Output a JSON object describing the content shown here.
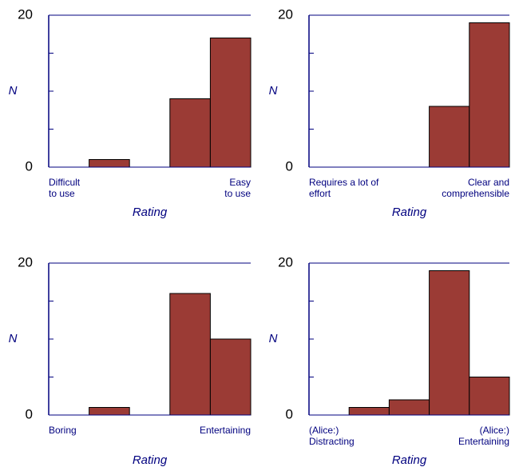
{
  "chart_data": [
    {
      "type": "bar",
      "values": [
        0,
        1,
        0,
        9,
        17
      ],
      "color": "#9b3b35",
      "ylim": [
        0,
        20
      ],
      "yticks": [
        0,
        20
      ],
      "minor_yticks": [
        5,
        10,
        15
      ],
      "ylabel": "N",
      "xlabel": "Rating",
      "low_label": [
        "Difficult",
        "to use"
      ],
      "high_label": [
        "Easy",
        "to use"
      ]
    },
    {
      "type": "bar",
      "values": [
        0,
        0,
        0,
        8,
        19
      ],
      "color": "#9b3b35",
      "ylim": [
        0,
        20
      ],
      "yticks": [
        0,
        20
      ],
      "minor_yticks": [
        5,
        10,
        15
      ],
      "ylabel": "N",
      "xlabel": "Rating",
      "low_label": [
        "Requires a lot of",
        "effort"
      ],
      "high_label": [
        "Clear and",
        "comprehensible"
      ]
    },
    {
      "type": "bar",
      "values": [
        0,
        1,
        0,
        16,
        10
      ],
      "color": "#9b3b35",
      "ylim": [
        0,
        20
      ],
      "yticks": [
        0,
        20
      ],
      "minor_yticks": [
        5,
        10,
        15
      ],
      "ylabel": "N",
      "xlabel": "Rating",
      "low_label": [
        "Boring"
      ],
      "high_label": [
        "Entertaining"
      ]
    },
    {
      "type": "bar",
      "values": [
        0,
        1,
        2,
        19,
        5
      ],
      "color": "#9b3b35",
      "ylim": [
        0,
        20
      ],
      "yticks": [
        0,
        20
      ],
      "minor_yticks": [
        5,
        10,
        15
      ],
      "ylabel": "N",
      "xlabel": "Rating",
      "low_label": [
        "(Alice:)",
        "Distracting"
      ],
      "high_label": [
        "(Alice:)",
        "Entertaining"
      ]
    }
  ]
}
